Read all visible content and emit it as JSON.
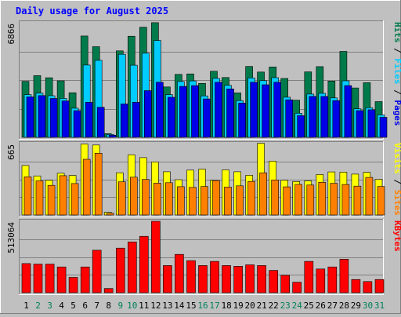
{
  "chart_data": {
    "type": "bar",
    "title": "Daily usage for August 2025",
    "categories": [
      "1",
      "2",
      "3",
      "4",
      "5",
      "6",
      "7",
      "8",
      "9",
      "10",
      "11",
      "12",
      "13",
      "14",
      "15",
      "16",
      "17",
      "18",
      "19",
      "20",
      "21",
      "22",
      "23",
      "24",
      "25",
      "26",
      "27",
      "28",
      "29",
      "30",
      "31"
    ],
    "weekend_categories": [
      "2",
      "3",
      "9",
      "10",
      "16",
      "17",
      "23",
      "24",
      "30",
      "31"
    ],
    "panels": [
      {
        "id": "top",
        "max_label": "6866",
        "ylim": [
          0,
          6866
        ],
        "right_labels": [
          "Hits",
          "Files",
          "Pages"
        ],
        "series": [
          {
            "name": "Hits",
            "color": "#007a4a",
            "values": [
              3355,
              3698,
              3570,
              3387,
              2672,
              6073,
              5431,
              220,
              5183,
              6057,
              6597,
              6870,
              3020,
              3770,
              3801,
              3231,
              3961,
              3585,
              2664,
              4245,
              3913,
              4215,
              3526,
              2223,
              3920,
              4237,
              3372,
              5148,
              2958,
              3271,
              2138
            ]
          },
          {
            "name": "Files",
            "color": "#00ccff",
            "values": [
              2560,
              2648,
              2491,
              2334,
              1744,
              4329,
              4612,
              175,
              4976,
              4324,
              5039,
              5804,
              2557,
              3342,
              3383,
              2481,
              3534,
              3114,
              2201,
              3561,
              3394,
              3575,
              2403,
              1442,
              2592,
              2633,
              2361,
              3386,
              1714,
              1771,
              1340
            ]
          },
          {
            "name": "Pages",
            "color": "#0000e6",
            "values": [
              2420,
              2500,
              2330,
              2180,
              1600,
              2100,
              1800,
              120,
              2000,
              2100,
              2800,
              3300,
              2400,
              3050,
              3100,
              2300,
              3300,
              2900,
              2050,
              3300,
              3150,
              3300,
              2250,
              1300,
              2450,
              2450,
              2200,
              3100,
              1600,
              1650,
              1200
            ]
          }
        ]
      },
      {
        "id": "middle",
        "max_label": "665",
        "ylim": [
          0,
          665
        ],
        "right_labels": [
          "Visits",
          "Sites"
        ],
        "series": [
          {
            "name": "Visits",
            "color": "#ffff00",
            "values": [
              461,
              364,
              323,
              389,
              368,
              661,
              652,
              25,
              393,
              561,
              534,
              494,
              403,
              329,
              418,
              427,
              323,
              420,
              403,
              370,
              667,
              502,
              324,
              312,
              318,
              377,
              401,
              399,
              381,
              397,
              332
            ]
          },
          {
            "name": "Sites",
            "color": "#ff8000",
            "values": [
              356,
              318,
              276,
              366,
              293,
              519,
              575,
              16,
              309,
              352,
              331,
              297,
              301,
              264,
              257,
              265,
              321,
              260,
              272,
              313,
              393,
              327,
              262,
              285,
              279,
              305,
              295,
              284,
              269,
              350,
              265
            ]
          }
        ]
      },
      {
        "id": "bottom",
        "max_label": "513064",
        "ylim": [
          0,
          513064
        ],
        "right_labels": [
          "KBytes"
        ],
        "series": [
          {
            "name": "KBytes",
            "color": "#ff0000",
            "values": [
              209000,
              205000,
              205000,
              185000,
              110000,
              185000,
              305000,
              30000,
              320000,
              365000,
              405000,
              513064,
              195000,
              275000,
              230000,
              195000,
              225000,
              195000,
              190000,
              200000,
              195000,
              160000,
              125000,
              75000,
              225000,
              170000,
              185000,
              240000,
              95000,
              80000,
              95000
            ]
          }
        ]
      }
    ]
  }
}
